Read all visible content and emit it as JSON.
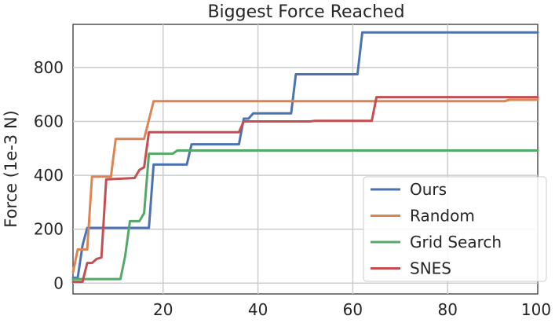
{
  "chart_data": {
    "type": "line",
    "title": "Biggest Force Reached",
    "xlabel": "",
    "ylabel": "Force (1e-3 N)",
    "xlim": [
      1,
      99
    ],
    "ylim": [
      -40,
      960
    ],
    "xticks": [
      20,
      40,
      60,
      80,
      100
    ],
    "yticks": [
      0,
      200,
      400,
      600,
      800
    ],
    "grid": true,
    "legend_position": "lower-right",
    "series": [
      {
        "name": "Ours",
        "color": "#4c72b0",
        "points": [
          [
            1,
            20
          ],
          [
            2,
            20
          ],
          [
            3,
            140
          ],
          [
            4,
            205
          ],
          [
            5,
            205
          ],
          [
            17,
            205
          ],
          [
            18,
            440
          ],
          [
            25,
            440
          ],
          [
            26,
            515
          ],
          [
            36,
            515
          ],
          [
            37,
            610
          ],
          [
            38,
            610
          ],
          [
            39,
            630
          ],
          [
            47,
            630
          ],
          [
            48,
            775
          ],
          [
            61,
            775
          ],
          [
            62,
            930
          ],
          [
            99,
            930
          ]
        ]
      },
      {
        "name": "Random",
        "color": "#dd8452",
        "points": [
          [
            1,
            40
          ],
          [
            2,
            125
          ],
          [
            4,
            125
          ],
          [
            5,
            395
          ],
          [
            9,
            395
          ],
          [
            10,
            535
          ],
          [
            16,
            535
          ],
          [
            18,
            675
          ],
          [
            92,
            675
          ],
          [
            93,
            680
          ],
          [
            99,
            680
          ]
        ]
      },
      {
        "name": "Grid Search",
        "color": "#55a868",
        "points": [
          [
            1,
            15
          ],
          [
            11,
            15
          ],
          [
            12,
            100
          ],
          [
            13,
            230
          ],
          [
            15,
            230
          ],
          [
            16,
            260
          ],
          [
            17,
            480
          ],
          [
            22,
            480
          ],
          [
            23,
            492
          ],
          [
            99,
            492
          ]
        ]
      },
      {
        "name": "SNES",
        "color": "#c44e52",
        "points": [
          [
            1,
            5
          ],
          [
            3,
            5
          ],
          [
            4,
            75
          ],
          [
            5,
            75
          ],
          [
            6,
            90
          ],
          [
            7,
            95
          ],
          [
            8,
            385
          ],
          [
            14,
            390
          ],
          [
            15,
            420
          ],
          [
            16,
            430
          ],
          [
            17,
            560
          ],
          [
            36,
            560
          ],
          [
            37,
            600
          ],
          [
            51,
            600
          ],
          [
            52,
            602
          ],
          [
            64,
            602
          ],
          [
            65,
            690
          ],
          [
            99,
            690
          ]
        ]
      }
    ]
  }
}
